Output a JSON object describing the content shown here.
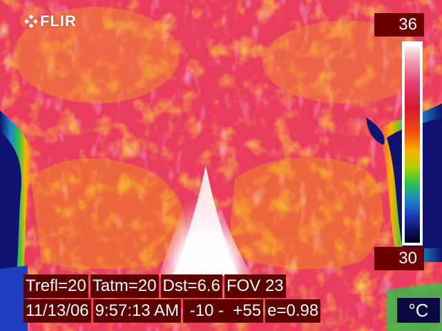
{
  "brand": "FLIR",
  "scale": {
    "max": "36",
    "min": "30",
    "unit": "°C"
  },
  "info": {
    "trefl": "Trefl=20",
    "tatm": "Tatm=20",
    "dst": "Dst=6.6",
    "fov": "FOV 23",
    "date": "11/13/06",
    "time": "9:57:13 AM",
    "range": " -10 -  +55",
    "emissivity": "e=0.98"
  },
  "palette": {
    "hot": "#ffffff",
    "warm": "#f7b400",
    "mid": "#d8182c",
    "cool": "#2ec24a",
    "cold": "#101470"
  }
}
